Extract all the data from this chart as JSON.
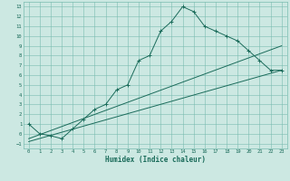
{
  "xlabel": "Humidex (Indice chaleur)",
  "ylabel": "",
  "bg_color": "#cce8e2",
  "grid_color": "#7abcb0",
  "line_color": "#1a6b5a",
  "xlim": [
    -0.5,
    23.5
  ],
  "ylim": [
    -1.5,
    13.5
  ],
  "xticks": [
    0,
    1,
    2,
    3,
    4,
    5,
    6,
    7,
    8,
    9,
    10,
    11,
    12,
    13,
    14,
    15,
    16,
    17,
    18,
    19,
    20,
    21,
    22,
    23
  ],
  "yticks": [
    -1,
    0,
    1,
    2,
    3,
    4,
    5,
    6,
    7,
    8,
    9,
    10,
    11,
    12,
    13
  ],
  "curve_x": [
    0,
    1,
    2,
    3,
    4,
    5,
    6,
    7,
    8,
    9,
    10,
    11,
    12,
    13,
    14,
    15,
    16,
    17,
    18,
    19,
    20,
    21,
    22,
    23
  ],
  "curve_y": [
    1,
    0,
    -0.2,
    -0.5,
    0.5,
    1.5,
    2.5,
    3.0,
    4.5,
    5.0,
    7.5,
    8.0,
    10.5,
    11.5,
    13.0,
    12.5,
    11.0,
    10.5,
    10.0,
    9.5,
    8.5,
    7.5,
    6.5,
    6.5
  ],
  "line1_x": [
    0,
    23
  ],
  "line1_y": [
    -0.5,
    9.0
  ],
  "line2_x": [
    0,
    23
  ],
  "line2_y": [
    -0.8,
    6.5
  ]
}
